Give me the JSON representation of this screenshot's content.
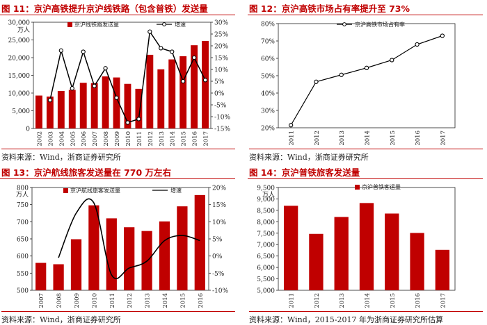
{
  "colors": {
    "bar": "#c00000",
    "line": "#000000",
    "accent": "#c00000"
  },
  "charts": [
    {
      "title": "图 11：京沪高铁提升京沪线铁路（包含普铁）发送量",
      "source": "资料来源：Wind，浙商证券研究所",
      "unit_label": "万人",
      "bar_legend": "京沪线铁路发送量",
      "line_legend": "增速",
      "left_ticks": [
        "0",
        "5,000",
        "10,000",
        "15,000",
        "20,000",
        "25,000",
        "30,000"
      ],
      "right_ticks": [
        "-15%",
        "-10%",
        "-5%",
        "0%",
        "5%",
        "10%",
        "15%",
        "20%",
        "25%",
        "30%"
      ]
    },
    {
      "title": "图 12：京沪高铁市场占有率提升至 73%",
      "source": "资料来源：Wind，浙商证券研究所",
      "line_legend": "京沪高铁市场占有率",
      "left_ticks": [
        "20%",
        "30%",
        "40%",
        "50%",
        "60%",
        "70%",
        "80%"
      ]
    },
    {
      "title": "图 13：京沪航线旅客发送量在 770 万左右",
      "source": "资料来源：Wind，浙商证券研究所",
      "unit_label": "万人",
      "bar_legend": "京沪航线旅客发送量",
      "line_legend": "增速",
      "left_ticks": [
        "500",
        "550",
        "600",
        "650",
        "700",
        "750",
        "800"
      ],
      "right_ticks": [
        "-10%",
        "-5%",
        "0%",
        "5%",
        "10%",
        "15%",
        "20%"
      ]
    },
    {
      "title": "图 14：京沪普铁旅客发送量",
      "source": "资料来源：Wind，2015-2017 年为浙商证券研究所估算",
      "unit_label": "万人",
      "bar_legend": "京沪普铁客运量",
      "left_ticks": [
        "5,000",
        "5,500",
        "6,000",
        "6,500",
        "7,000",
        "7,500",
        "8,000",
        "8,500",
        "9,000",
        "9,500"
      ]
    }
  ],
  "chart_data": [
    {
      "type": "bar",
      "title": "图 11：京沪高铁提升京沪线铁路（包含普铁）发送量",
      "categories": [
        "2002",
        "2003",
        "2004",
        "2005",
        "2006",
        "2007",
        "2008",
        "2009",
        "2010",
        "2011",
        "2012",
        "2013",
        "2014",
        "2015",
        "2016",
        "2017"
      ],
      "series": [
        {
          "name": "京沪线铁路发送量",
          "type": "bar",
          "axis": "left",
          "values": [
            9300,
            9000,
            10600,
            10900,
            12900,
            12800,
            14700,
            14400,
            12600,
            11200,
            20800,
            16700,
            19500,
            20400,
            23500,
            24700
          ]
        },
        {
          "name": "增速",
          "type": "line",
          "axis": "right",
          "values": [
            null,
            -3,
            18,
            2,
            17.5,
            3,
            10.5,
            -2,
            -12.5,
            -11,
            26,
            19,
            17.5,
            5,
            15,
            5.5
          ]
        }
      ],
      "ylabel": "万人",
      "ylim": [
        0,
        30000
      ],
      "y2lim": [
        -15,
        30
      ],
      "legend": "top-center",
      "grid": false
    },
    {
      "type": "line",
      "title": "图 12：京沪高铁市场占有率提升至 73%",
      "categories": [
        "2011",
        "2012",
        "2013",
        "2014",
        "2015",
        "2016",
        "2017"
      ],
      "series": [
        {
          "name": "京沪高铁市场占有率",
          "values": [
            21.5,
            46.5,
            50.5,
            54.5,
            59,
            68,
            73
          ]
        }
      ],
      "ylim": [
        20,
        80
      ],
      "legend": "top-left",
      "grid": false
    },
    {
      "type": "bar",
      "title": "图 13：京沪航线旅客发送量在 770 万左右",
      "categories": [
        "2007",
        "2008",
        "2009",
        "2010",
        "2011",
        "2012",
        "2013",
        "2014",
        "2015",
        "2016"
      ],
      "series": [
        {
          "name": "京沪航线旅客发送量",
          "type": "bar",
          "axis": "left",
          "values": [
            580,
            576,
            649,
            748,
            710,
            684,
            673,
            701,
            745,
            778
          ]
        },
        {
          "name": "增速",
          "type": "line",
          "axis": "right",
          "values": [
            null,
            -0.5,
            12.5,
            15.5,
            -5.5,
            -3.5,
            -1.5,
            4.5,
            6,
            4.5
          ]
        }
      ],
      "ylabel": "万人",
      "ylim": [
        500,
        800
      ],
      "y2lim": [
        -10,
        20
      ],
      "legend": "top-center",
      "grid": false
    },
    {
      "type": "bar",
      "title": "图 14：京沪普铁旅客发送量",
      "categories": [
        "2011",
        "2012",
        "2013",
        "2014",
        "2015",
        "2016",
        "2017"
      ],
      "series": [
        {
          "name": "京沪普铁客运量",
          "values": [
            8700,
            7470,
            8210,
            8820,
            8360,
            7510,
            6770
          ]
        }
      ],
      "ylabel": "万人",
      "ylim": [
        5000,
        9500
      ],
      "legend": "top-left",
      "grid": false
    }
  ]
}
